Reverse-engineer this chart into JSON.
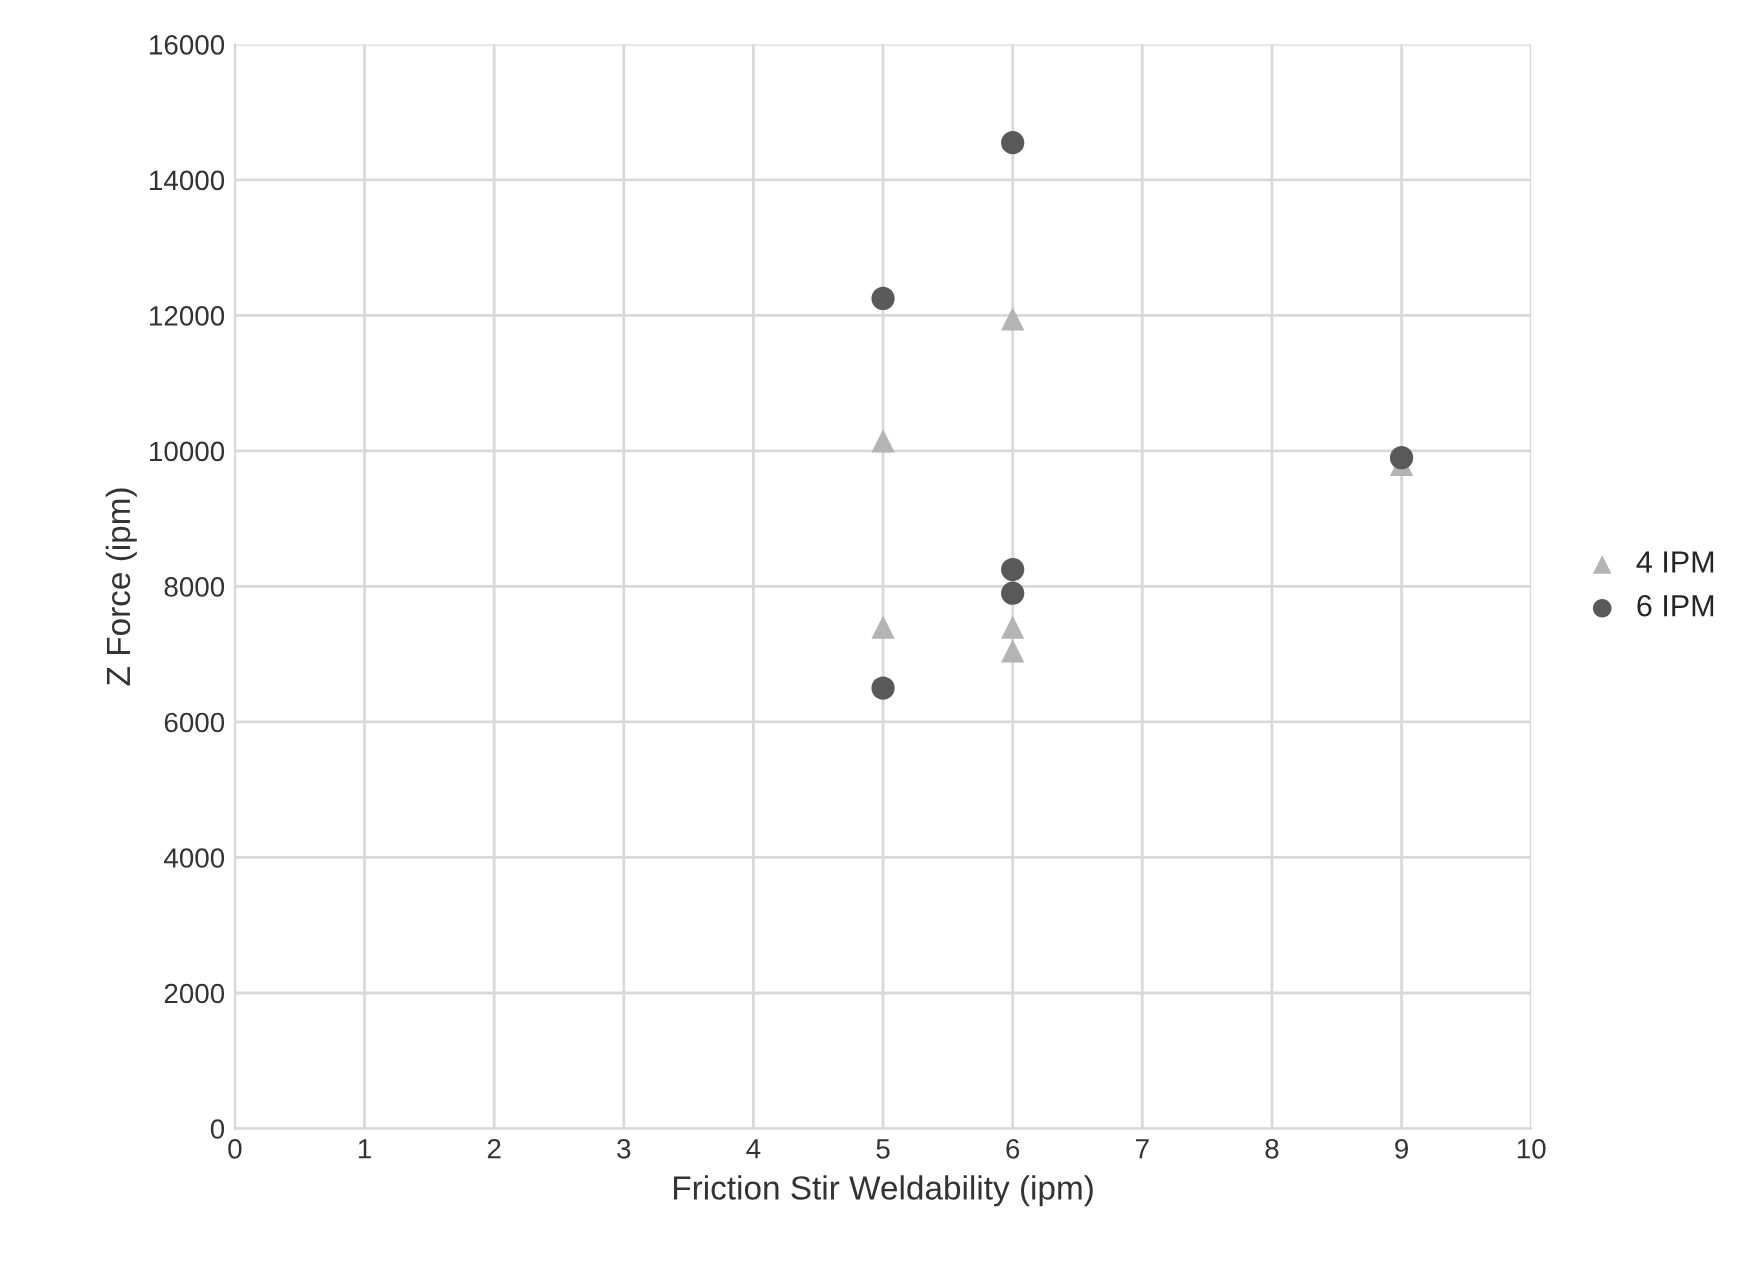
{
  "chart_data": {
    "type": "scatter",
    "xlabel": "Friction Stir Weldability (ipm)",
    "ylabel": "Z Force (ipm)",
    "xlim": [
      0,
      10
    ],
    "xticks": [
      0,
      1,
      2,
      3,
      4,
      5,
      6,
      7,
      8,
      9,
      10
    ],
    "ylim": [
      0,
      16000
    ],
    "yticks": [
      0,
      2000,
      4000,
      6000,
      8000,
      10000,
      12000,
      14000,
      16000
    ],
    "grid": true,
    "legend": "right",
    "series": [
      {
        "name": "4 IPM",
        "color": "#b4b4b4",
        "marker": "triangle",
        "x": [
          5,
          5,
          6,
          6,
          6,
          9
        ],
        "values": [
          10150,
          7400,
          11950,
          7400,
          7050,
          9800
        ]
      },
      {
        "name": "6 IPM",
        "color": "#595959",
        "marker": "circle",
        "x": [
          5,
          5,
          6,
          6,
          6,
          9
        ],
        "values": [
          12250,
          6500,
          14550,
          8250,
          7900,
          9900
        ]
      }
    ]
  }
}
